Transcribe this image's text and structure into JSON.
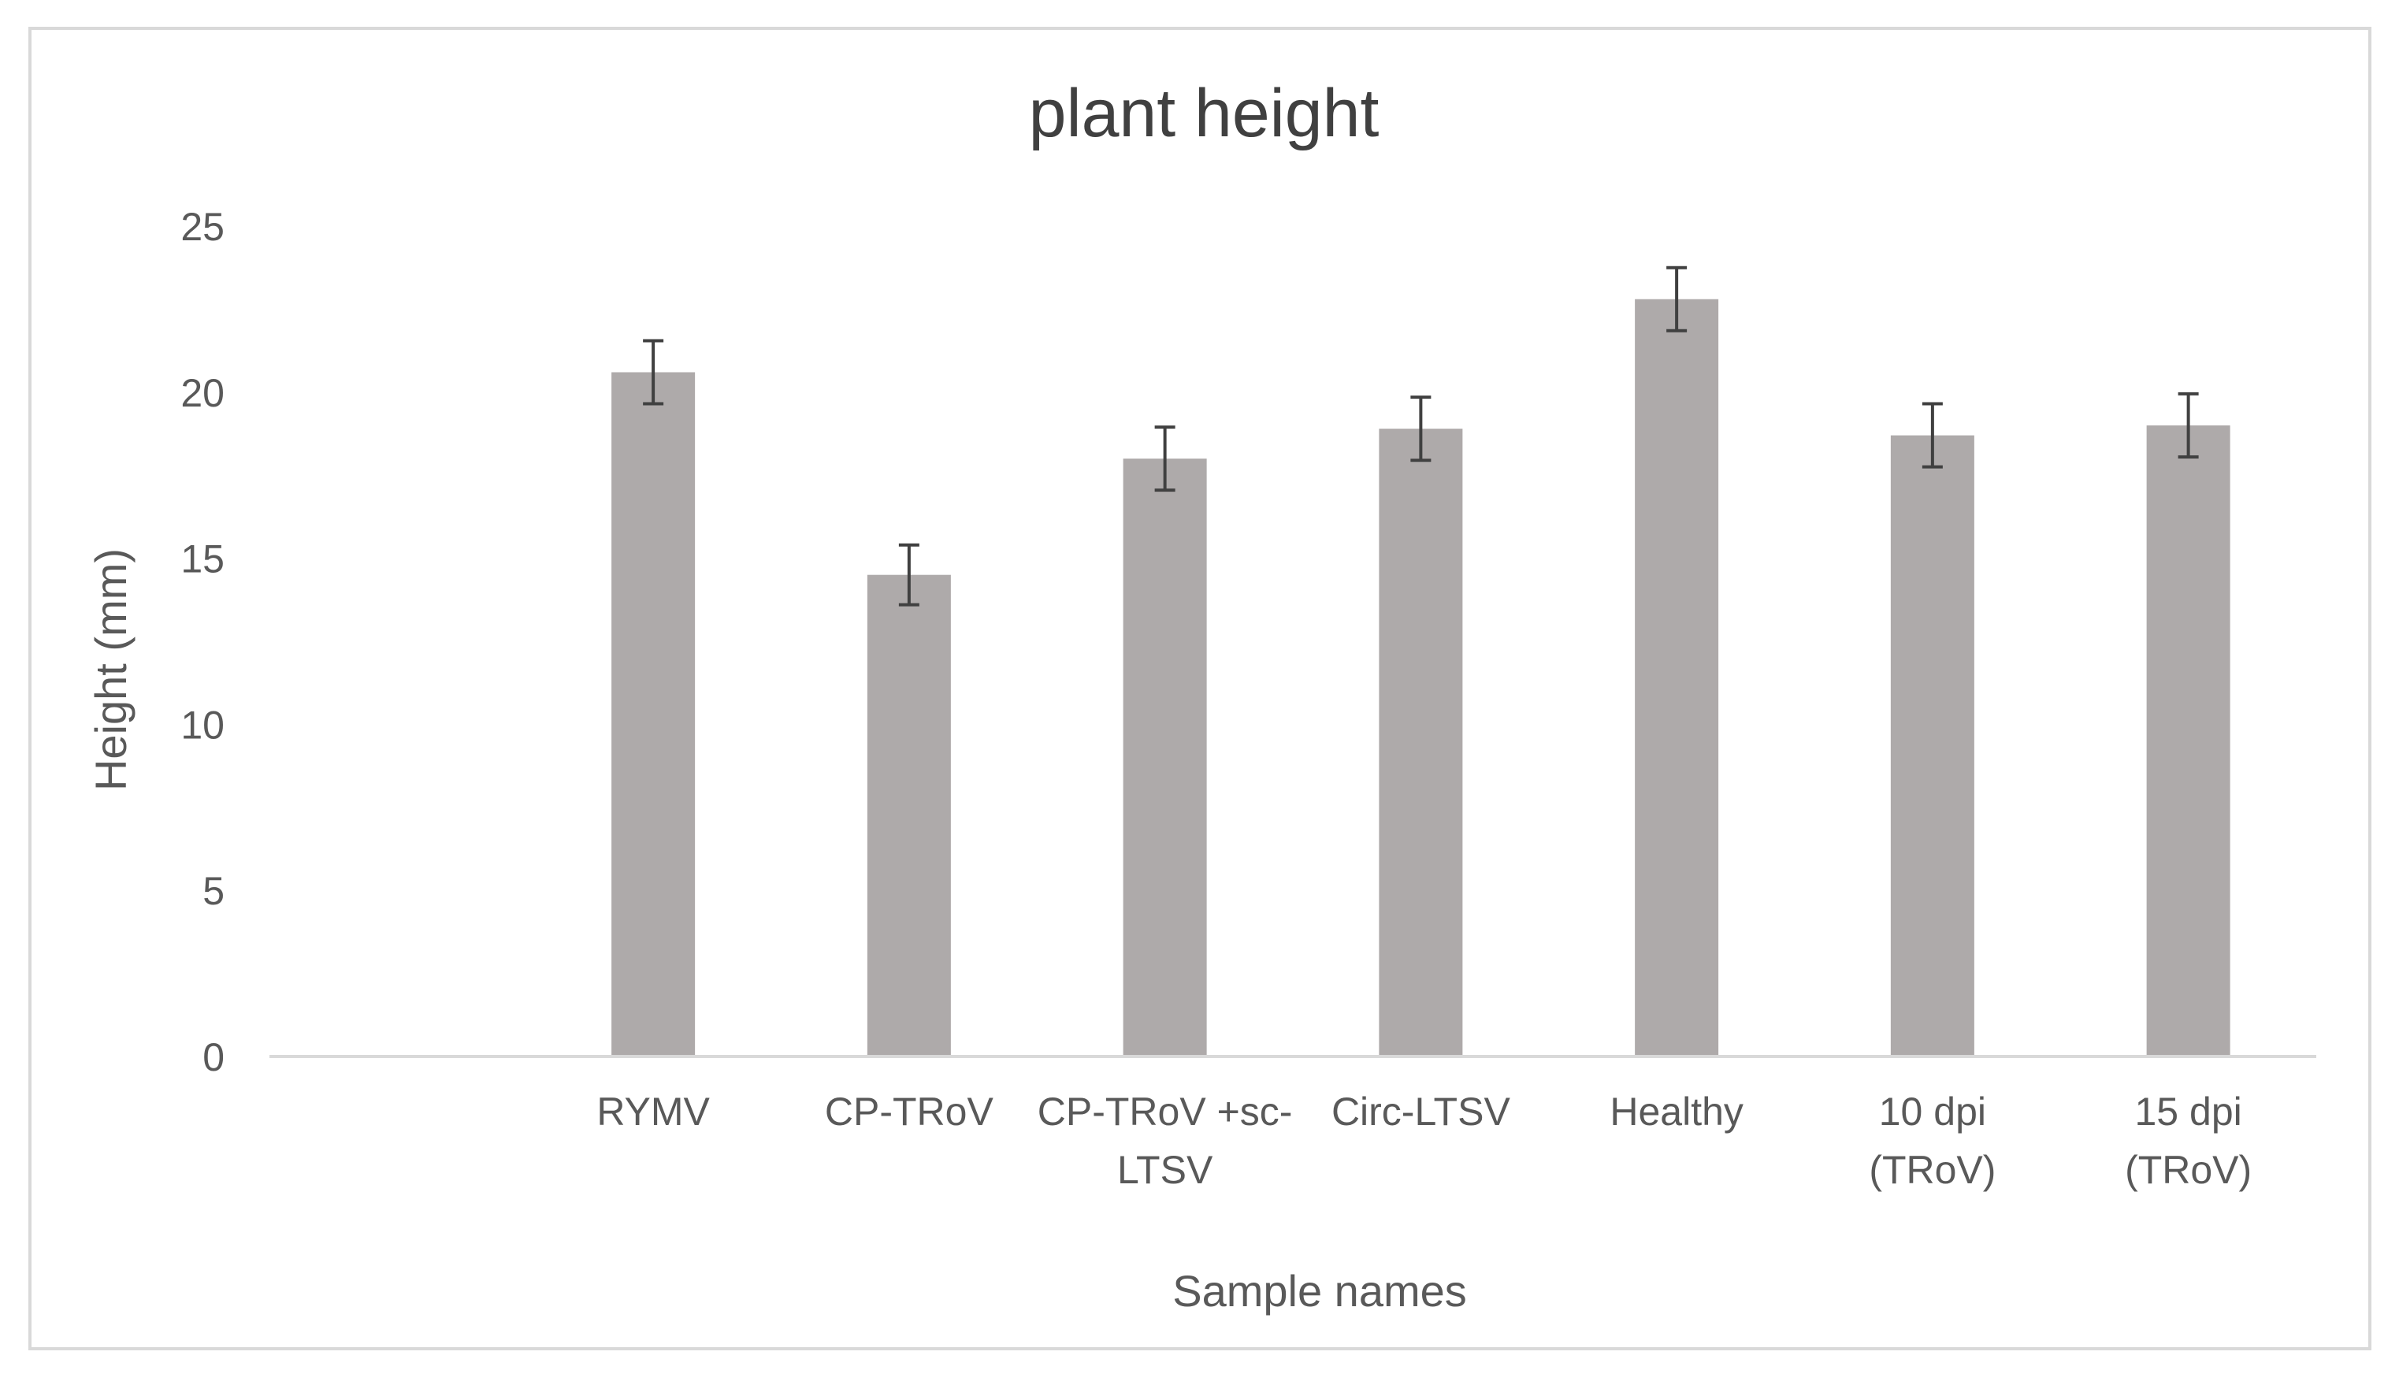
{
  "chart_data": {
    "type": "bar",
    "title": "plant height",
    "xlabel": "Sample names",
    "ylabel": "Height  (mm)",
    "ylim": [
      0,
      25
    ],
    "yticks": [
      "0",
      "5",
      "10",
      "15",
      "20",
      "25"
    ],
    "categories": [
      "",
      "RYMV",
      "CP-TRoV",
      "CP-TRoV +sc-LTSV",
      "Circ-LTSV",
      "Healthy",
      "10 dpi (TRoV)",
      "15 dpi (TRoV)"
    ],
    "category_lines": [
      [],
      [
        "RYMV"
      ],
      [
        "CP-TRoV"
      ],
      [
        "CP-TRoV +sc-",
        "LTSV"
      ],
      [
        "Circ-LTSV"
      ],
      [
        "Healthy"
      ],
      [
        "10 dpi",
        "(TRoV)"
      ],
      [
        "15 dpi",
        "(TRoV)"
      ]
    ],
    "values": [
      null,
      20.6,
      14.5,
      18.0,
      18.9,
      22.8,
      18.7,
      19.0
    ],
    "error": [
      null,
      0.95,
      0.9,
      0.95,
      0.95,
      0.95,
      0.95,
      0.95
    ],
    "grid": false,
    "legend": "none",
    "colors": {
      "bar": "#aeaaaa",
      "error_bar": "#404040",
      "axis": "#d9d9d9"
    }
  }
}
